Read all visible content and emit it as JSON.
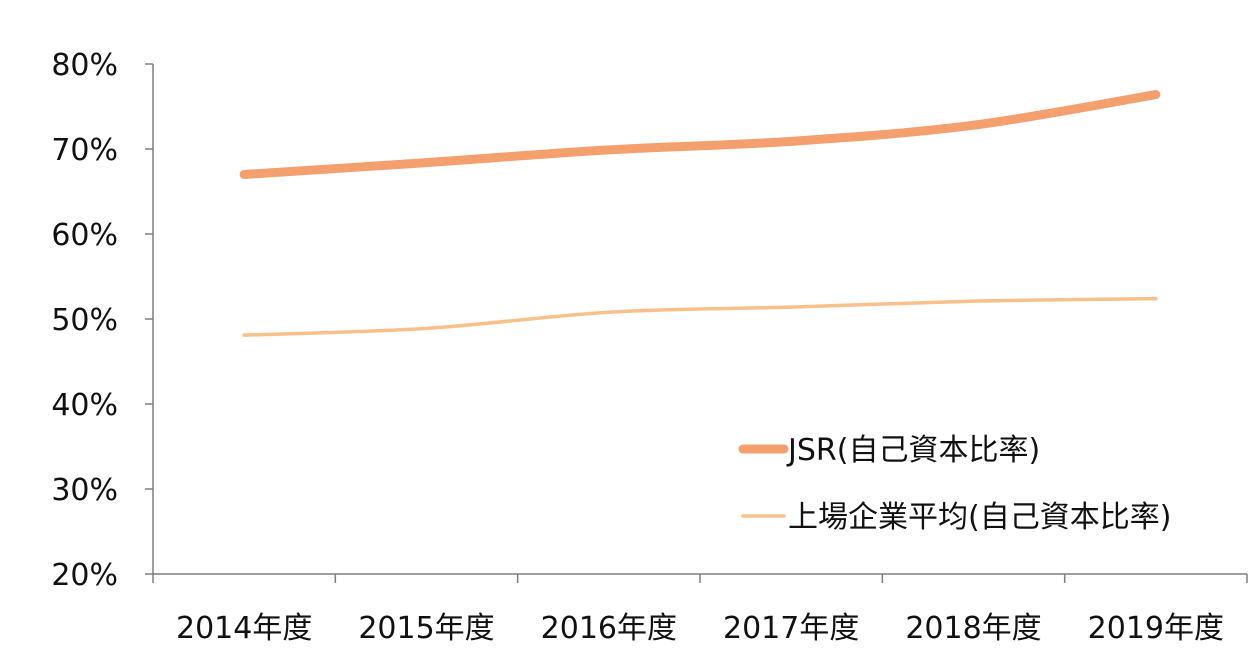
{
  "chart_data": {
    "type": "line",
    "title": "",
    "xlabel": "",
    "ylabel": "",
    "categories": [
      "2014年度",
      "2015年度",
      "2016年度",
      "2017年度",
      "2018年度",
      "2019年度"
    ],
    "ylim": [
      0.2,
      0.8
    ],
    "yticks": [
      0.8,
      0.7,
      0.6,
      0.5,
      0.4,
      0.3,
      0.2
    ],
    "ytick_labels": [
      "80%",
      "70%",
      "60%",
      "50%",
      "40%",
      "30%",
      "20%"
    ],
    "grid": false,
    "legend_position": "bottom-right",
    "series": [
      {
        "name": "JSR(自己資本比率)",
        "values": [
          0.67,
          0.684,
          0.699,
          0.709,
          0.728,
          0.764
        ],
        "color": "#F4A06E",
        "line_style": "thick"
      },
      {
        "name": "上場企業平均(自己資本比率)",
        "values": [
          0.481,
          0.489,
          0.508,
          0.514,
          0.521,
          0.524
        ],
        "color": "#F9C08C",
        "line_style": "thin"
      }
    ]
  }
}
